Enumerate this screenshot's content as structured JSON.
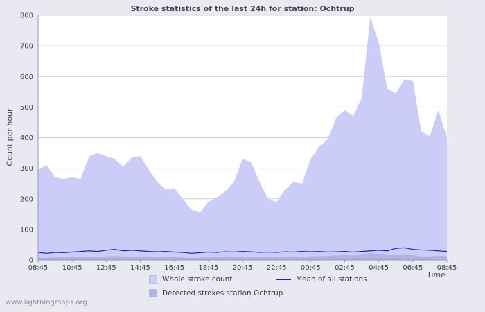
{
  "page": {
    "watermark": "www.lightningmaps.org"
  },
  "chart_data": {
    "type": "area",
    "title": "Stroke statistics of the last 24h for station: Ochtrup",
    "ylabel": "Count per hour",
    "xlabel": "Time",
    "ylim": [
      0,
      800
    ],
    "y_ticks": [
      0,
      100,
      200,
      300,
      400,
      500,
      600,
      700,
      800
    ],
    "x_tick_labels": [
      "08:45",
      "10:45",
      "12:45",
      "14:45",
      "16:45",
      "18:45",
      "20:45",
      "22:45",
      "00:45",
      "02:45",
      "04:45",
      "06:45",
      "08:45"
    ],
    "x_times": [
      "08:45",
      "09:15",
      "09:45",
      "10:15",
      "10:45",
      "11:15",
      "11:45",
      "12:15",
      "12:45",
      "13:15",
      "13:45",
      "14:15",
      "14:45",
      "15:15",
      "15:45",
      "16:15",
      "16:45",
      "17:15",
      "17:45",
      "18:15",
      "18:45",
      "19:15",
      "19:45",
      "20:15",
      "20:45",
      "21:15",
      "21:45",
      "22:15",
      "22:45",
      "23:15",
      "23:45",
      "00:15",
      "00:45",
      "01:15",
      "01:45",
      "02:15",
      "02:45",
      "03:15",
      "03:45",
      "04:15",
      "04:45",
      "05:15",
      "05:45",
      "06:15",
      "06:45",
      "07:15",
      "07:45",
      "08:15",
      "08:45"
    ],
    "grid": true,
    "legend_position": "bottom",
    "series": [
      {
        "name": "Whole stroke count",
        "type": "area",
        "color": "#ccccf8",
        "values": [
          295,
          310,
          270,
          265,
          270,
          265,
          340,
          350,
          340,
          330,
          305,
          335,
          340,
          295,
          255,
          230,
          235,
          200,
          165,
          155,
          190,
          205,
          225,
          255,
          330,
          320,
          255,
          200,
          190,
          230,
          255,
          250,
          330,
          370,
          395,
          465,
          490,
          470,
          530,
          795,
          710,
          560,
          545,
          590,
          585,
          420,
          405,
          490,
          400
        ]
      },
      {
        "name": "Detected strokes station Ochtrup",
        "type": "area",
        "color": "#b1b1e6",
        "values": [
          8,
          7,
          9,
          8,
          10,
          9,
          12,
          11,
          12,
          13,
          11,
          12,
          11,
          10,
          9,
          10,
          9,
          8,
          7,
          8,
          9,
          9,
          10,
          10,
          12,
          11,
          9,
          9,
          9,
          10,
          10,
          10,
          12,
          13,
          13,
          15,
          16,
          15,
          17,
          22,
          20,
          16,
          15,
          17,
          16,
          12,
          12,
          14,
          12
        ]
      },
      {
        "name": "Mean of all stations",
        "type": "line",
        "color": "#2222cc",
        "values": [
          25,
          22,
          25,
          24,
          26,
          28,
          30,
          28,
          32,
          35,
          30,
          32,
          30,
          28,
          27,
          28,
          26,
          25,
          22,
          24,
          26,
          25,
          27,
          26,
          28,
          27,
          25,
          26,
          25,
          27,
          26,
          28,
          27,
          28,
          26,
          27,
          28,
          26,
          28,
          30,
          32,
          30,
          38,
          40,
          35,
          33,
          32,
          30,
          28
        ]
      }
    ],
    "colors": {
      "grid": "#cfcfd8",
      "axis": "#9a9aa6",
      "plot_background": "#ffffff",
      "page_background": "#e9e9f1"
    }
  }
}
